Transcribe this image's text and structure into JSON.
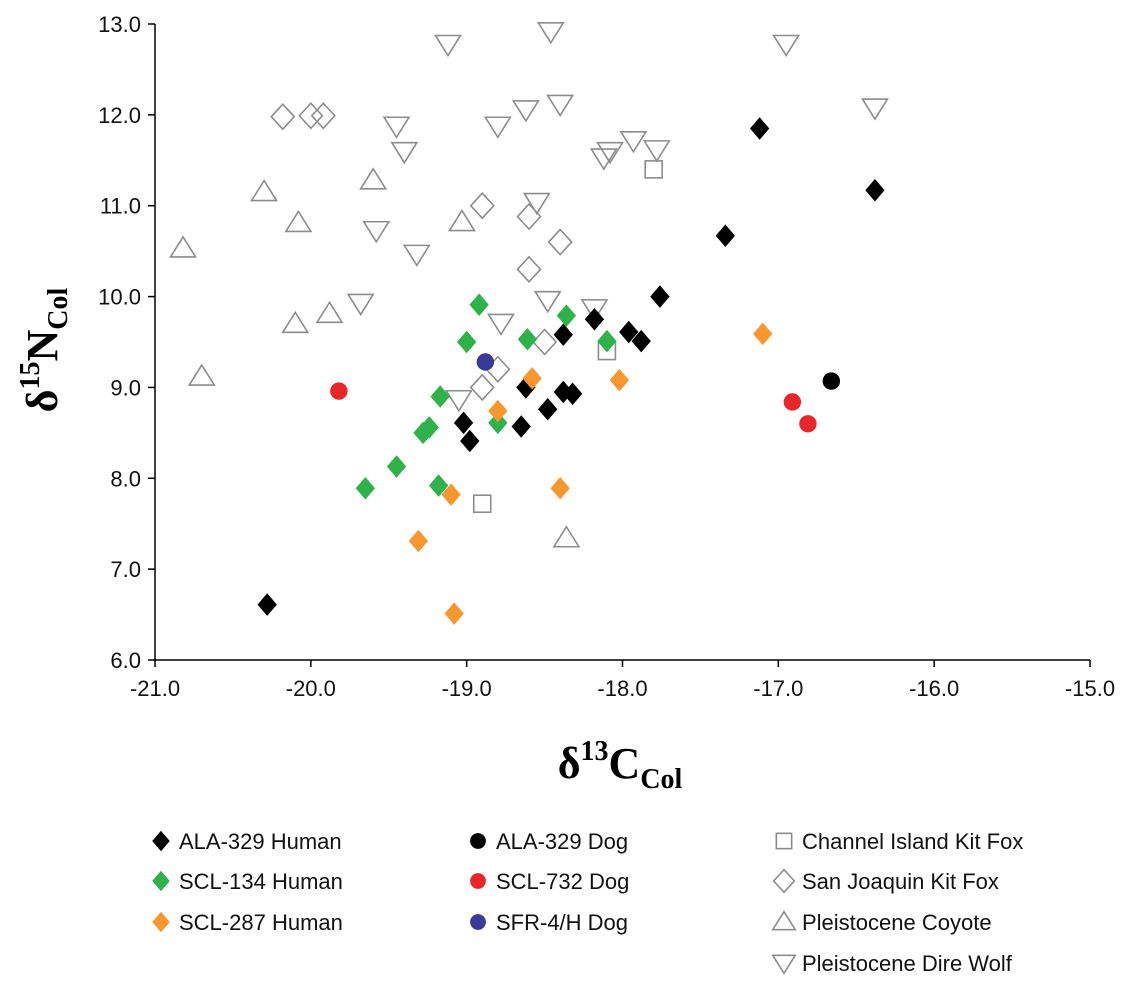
{
  "chart_data": {
    "type": "scatter",
    "xlabel": {
      "base": "δ",
      "sup": "13",
      "main": "C",
      "sub": "Col"
    },
    "ylabel": {
      "base": "δ",
      "sup": "15",
      "main": "N",
      "sub": "Col"
    },
    "xlim": [
      -21.0,
      -15.0
    ],
    "ylim": [
      6.0,
      13.0
    ],
    "xticks": [
      -21.0,
      -20.0,
      -19.0,
      -18.0,
      -17.0,
      -16.0,
      -15.0
    ],
    "yticks": [
      6.0,
      7.0,
      8.0,
      9.0,
      10.0,
      11.0,
      12.0,
      13.0
    ],
    "xtick_labels": [
      "-21.0",
      "-20.0",
      "-19.0",
      "-18.0",
      "-17.0",
      "-16.0",
      "-15.0"
    ],
    "ytick_labels": [
      "6.0",
      "7.0",
      "8.0",
      "9.0",
      "10.0",
      "11.0",
      "12.0",
      "13.0"
    ],
    "grid": false,
    "legend_position": "bottom",
    "series": [
      {
        "name": "ALA-329 Human",
        "marker": "diamond",
        "color": "#000000",
        "filled": true,
        "points": [
          [
            -20.28,
            6.61
          ],
          [
            -19.02,
            8.61
          ],
          [
            -18.98,
            8.41
          ],
          [
            -18.65,
            8.57
          ],
          [
            -18.62,
            9.0
          ],
          [
            -18.48,
            8.76
          ],
          [
            -18.38,
            9.58
          ],
          [
            -18.38,
            8.95
          ],
          [
            -18.32,
            8.93
          ],
          [
            -18.18,
            9.75
          ],
          [
            -17.96,
            9.61
          ],
          [
            -17.88,
            9.51
          ],
          [
            -17.76,
            10.0
          ],
          [
            -17.34,
            10.67
          ],
          [
            -17.12,
            11.85
          ],
          [
            -16.38,
            11.17
          ]
        ]
      },
      {
        "name": "SCL-134 Human",
        "marker": "diamond",
        "color": "#2db34a",
        "filled": true,
        "points": [
          [
            -19.65,
            7.89
          ],
          [
            -19.45,
            8.13
          ],
          [
            -19.28,
            8.5
          ],
          [
            -19.24,
            8.56
          ],
          [
            -19.18,
            7.92
          ],
          [
            -19.17,
            8.9
          ],
          [
            -19.0,
            9.5
          ],
          [
            -18.92,
            9.91
          ],
          [
            -18.8,
            8.61
          ],
          [
            -18.61,
            9.53
          ],
          [
            -18.36,
            9.79
          ],
          [
            -18.1,
            9.51
          ]
        ]
      },
      {
        "name": "SCL-287 Human",
        "marker": "diamond",
        "color": "#f7972d",
        "filled": true,
        "points": [
          [
            -19.31,
            7.31
          ],
          [
            -19.1,
            7.82
          ],
          [
            -19.08,
            6.51
          ],
          [
            -18.8,
            8.74
          ],
          [
            -18.58,
            9.1
          ],
          [
            -18.4,
            7.89
          ],
          [
            -18.02,
            9.08
          ],
          [
            -17.1,
            9.59
          ]
        ]
      },
      {
        "name": "ALA-329 Dog",
        "marker": "circle",
        "color": "#000000",
        "filled": true,
        "points": [
          [
            -16.66,
            9.07
          ]
        ]
      },
      {
        "name": "SCL-732 Dog",
        "marker": "circle",
        "color": "#e8272a",
        "filled": true,
        "points": [
          [
            -19.82,
            8.96
          ],
          [
            -16.91,
            8.84
          ],
          [
            -16.81,
            8.6
          ]
        ]
      },
      {
        "name": "SFR-4/H Dog",
        "marker": "circle",
        "color": "#3a3a96",
        "filled": true,
        "points": [
          [
            -18.88,
            9.28
          ]
        ]
      },
      {
        "name": "Channel Island Kit Fox",
        "marker": "square",
        "color": "#8c8c8c",
        "filled": false,
        "points": [
          [
            -18.9,
            7.72
          ],
          [
            -18.1,
            9.4
          ],
          [
            -17.8,
            11.4
          ]
        ]
      },
      {
        "name": "San Joaquin Kit Fox",
        "marker": "diamond",
        "color": "#8c8c8c",
        "filled": false,
        "points": [
          [
            -20.18,
            11.98
          ],
          [
            -20.0,
            11.99
          ],
          [
            -19.92,
            11.99
          ],
          [
            -18.9,
            11.0
          ],
          [
            -18.9,
            9.0
          ],
          [
            -18.8,
            9.2
          ],
          [
            -18.6,
            10.88
          ],
          [
            -18.6,
            10.3
          ],
          [
            -18.5,
            9.5
          ],
          [
            -18.4,
            10.6
          ]
        ]
      },
      {
        "name": "Pleistocene  Coyote",
        "marker": "triangle-up",
        "color": "#8c8c8c",
        "filled": false,
        "points": [
          [
            -20.82,
            10.53
          ],
          [
            -20.7,
            9.12
          ],
          [
            -20.3,
            11.15
          ],
          [
            -20.1,
            9.7
          ],
          [
            -20.08,
            10.81
          ],
          [
            -19.88,
            9.81
          ],
          [
            -19.6,
            11.28
          ],
          [
            -19.03,
            10.82
          ],
          [
            -18.36,
            7.34
          ]
        ]
      },
      {
        "name": "Pleistocene  Dire Wolf",
        "marker": "triangle-down",
        "color": "#8c8c8c",
        "filled": false,
        "points": [
          [
            -19.12,
            12.78
          ],
          [
            -18.46,
            12.92
          ],
          [
            -16.95,
            12.78
          ],
          [
            -16.38,
            12.08
          ],
          [
            -18.62,
            12.06
          ],
          [
            -18.4,
            12.12
          ],
          [
            -18.8,
            11.88
          ],
          [
            -19.45,
            11.88
          ],
          [
            -19.4,
            11.6
          ],
          [
            -18.55,
            11.04
          ],
          [
            -18.12,
            11.53
          ],
          [
            -18.08,
            11.6
          ],
          [
            -17.93,
            11.72
          ],
          [
            -17.78,
            11.62
          ],
          [
            -19.58,
            10.73
          ],
          [
            -19.32,
            10.47
          ],
          [
            -19.68,
            9.93
          ],
          [
            -18.48,
            9.96
          ],
          [
            -18.18,
            9.87
          ],
          [
            -18.78,
            9.71
          ],
          [
            -19.05,
            8.87
          ]
        ]
      }
    ]
  }
}
